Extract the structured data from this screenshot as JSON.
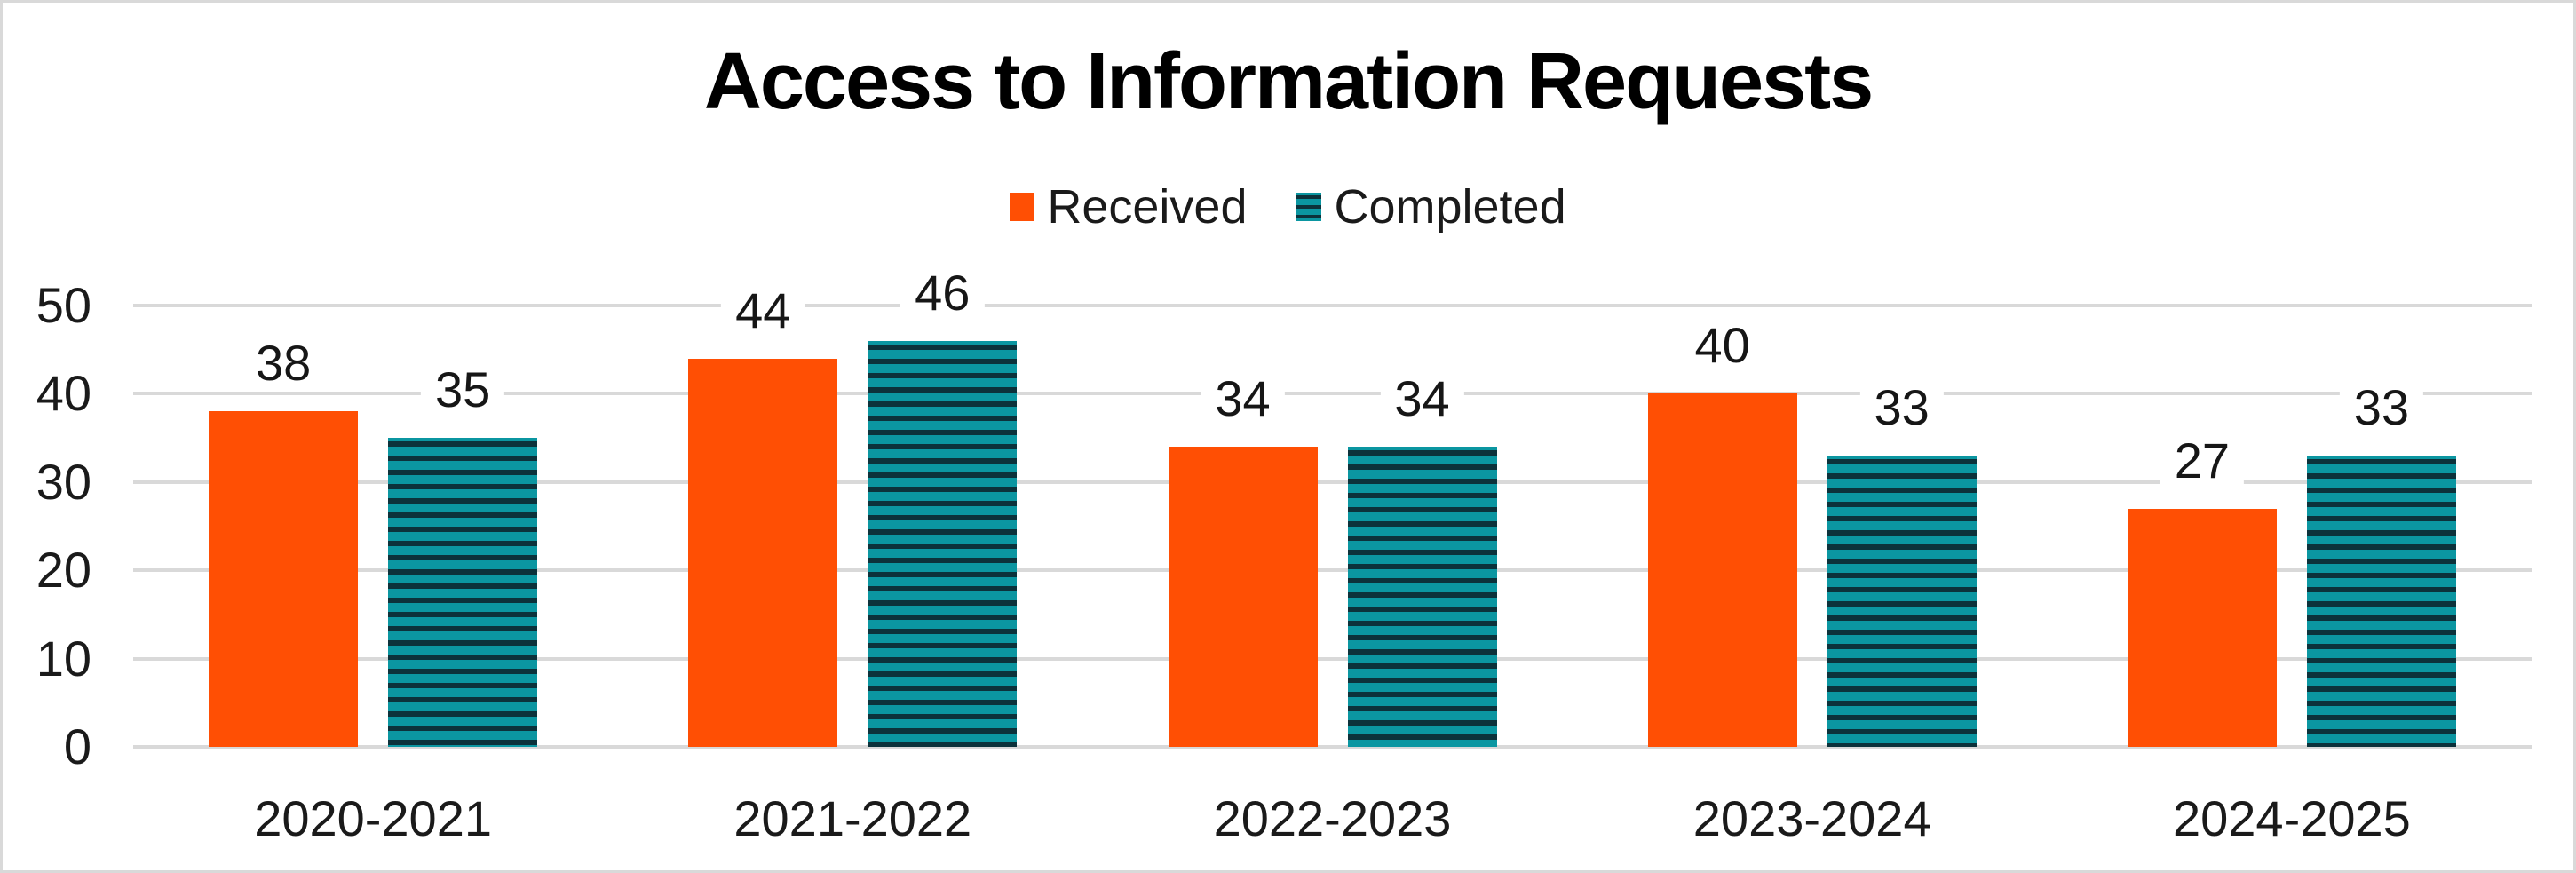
{
  "chart_data": {
    "type": "bar",
    "title": "Access to Information Requests",
    "categories": [
      "2020-2021",
      "2021-2022",
      "2022-2023",
      "2023-2024",
      "2024-2025"
    ],
    "series": [
      {
        "name": "Received",
        "color": "#FF4F04",
        "pattern": "solid",
        "values": [
          38,
          44,
          34,
          40,
          27
        ]
      },
      {
        "name": "Completed",
        "color": "#0B96A1",
        "pattern": "horizontal-stripes",
        "stripe_color": "#0C323B",
        "values": [
          35,
          46,
          34,
          33,
          33
        ]
      }
    ],
    "ylim": [
      0,
      50
    ],
    "yticks": [
      0,
      10,
      20,
      30,
      40,
      50
    ],
    "grid": true,
    "legend_position": "top",
    "data_labels": true,
    "xlabel": "",
    "ylabel": ""
  },
  "colors": {
    "gridline": "#D9D9D9",
    "text": "#1A1A1A",
    "title": "#000000",
    "background": "#FFFFFF",
    "border": "#D9D9D9"
  }
}
